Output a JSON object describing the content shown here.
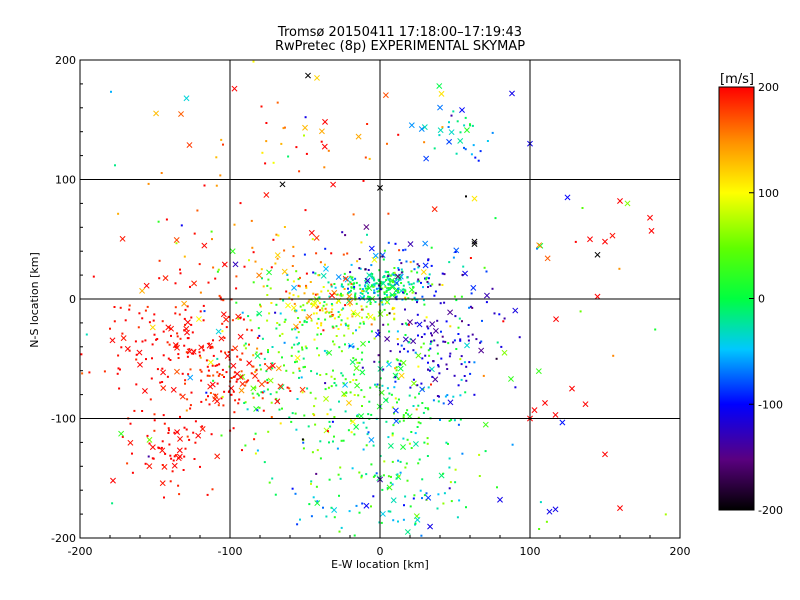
{
  "chart_data": {
    "type": "scatter",
    "title": "Tromsø 20150411 17:18:00–17:19:43",
    "subtitle": "RwPretec (8p) EXPERIMENTAL SKYMAP",
    "xlabel": "E-W location [km]",
    "ylabel": "N-S location [km]",
    "xlim": [
      -200,
      200
    ],
    "ylim": [
      -200,
      200
    ],
    "xticks": [
      -200,
      -100,
      0,
      100,
      200
    ],
    "yticks": [
      -200,
      -100,
      0,
      100,
      200
    ],
    "grid": "on",
    "colorbar": {
      "label": "[m/s]",
      "range": [
        -200,
        200
      ],
      "ticks": [
        200,
        100,
        0,
        -100,
        -200
      ],
      "colormap": "black-purple-blue-cyan-green-yellow-red"
    },
    "markers": [
      "dot",
      "x"
    ],
    "clusters": [
      {
        "cx": 0,
        "cy": 10,
        "sx": 14,
        "sy": 7,
        "n": 210,
        "v": -15,
        "dv": 35,
        "xfrac": 0.08
      },
      {
        "cx": -35,
        "cy": -8,
        "sx": 22,
        "sy": 10,
        "n": 130,
        "v": 95,
        "dv": 45,
        "xfrac": 0.12
      },
      {
        "cx": -40,
        "cy": -55,
        "sx": 35,
        "sy": 40,
        "n": 260,
        "v": 20,
        "dv": 45,
        "xfrac": 0.1
      },
      {
        "cx": 15,
        "cy": -100,
        "sx": 30,
        "sy": 50,
        "n": 220,
        "v": 0,
        "dv": 45,
        "xfrac": 0.1
      },
      {
        "cx": -130,
        "cy": -40,
        "sx": 28,
        "sy": 28,
        "n": 190,
        "v": 200,
        "dv": 10,
        "xfrac": 0.15
      },
      {
        "cx": -140,
        "cy": -125,
        "sx": 15,
        "sy": 18,
        "n": 70,
        "v": 200,
        "dv": 10,
        "xfrac": 0.2
      },
      {
        "cx": -90,
        "cy": -70,
        "sx": 15,
        "sy": 15,
        "n": 70,
        "v": 190,
        "dv": 20,
        "xfrac": 0.2
      },
      {
        "cx": 35,
        "cy": -40,
        "sx": 22,
        "sy": 25,
        "n": 120,
        "v": -125,
        "dv": 20,
        "xfrac": 0.15
      },
      {
        "cx": 50,
        "cy": 140,
        "sx": 14,
        "sy": 14,
        "n": 35,
        "v": -40,
        "dv": 40,
        "xfrac": 0.4
      },
      {
        "cx": -50,
        "cy": 110,
        "sx": 50,
        "sy": 40,
        "n": 50,
        "v": 180,
        "dv": 40,
        "xfrac": 0.25
      },
      {
        "cx": 20,
        "cy": 25,
        "sx": 25,
        "sy": 15,
        "n": 70,
        "v": -100,
        "dv": 50,
        "xfrac": 0.15
      },
      {
        "cx": -70,
        "cy": 30,
        "sx": 50,
        "sy": 20,
        "n": 60,
        "v": 170,
        "dv": 40,
        "xfrac": 0.15
      },
      {
        "cx": 0,
        "cy": -170,
        "sx": 30,
        "sy": 18,
        "n": 60,
        "v": -40,
        "dv": 40,
        "xfrac": 0.25
      },
      {
        "cx": 0,
        "cy": 0,
        "sx": 130,
        "sy": 110,
        "n": 110,
        "v": 60,
        "dv": 140,
        "xfrac": 0.2
      }
    ],
    "points": [
      {
        "x": 140,
        "y": 50,
        "v": 200,
        "m": "x"
      },
      {
        "x": 150,
        "y": 48,
        "v": 200,
        "m": "x"
      },
      {
        "x": 155,
        "y": 53,
        "v": 195,
        "m": "x"
      },
      {
        "x": 160,
        "y": 82,
        "v": 200,
        "m": "x"
      },
      {
        "x": 165,
        "y": 80,
        "v": 60,
        "m": "x"
      },
      {
        "x": 180,
        "y": 68,
        "v": 200,
        "m": "x"
      },
      {
        "x": 181,
        "y": 57,
        "v": 200,
        "m": "x"
      },
      {
        "x": 145,
        "y": 37,
        "v": -200,
        "m": "x"
      },
      {
        "x": 145,
        "y": 2,
        "v": 200,
        "m": "x"
      },
      {
        "x": 125,
        "y": 85,
        "v": -100,
        "m": "x"
      },
      {
        "x": 100,
        "y": 130,
        "v": -110,
        "m": "x"
      },
      {
        "x": 88,
        "y": 172,
        "v": -110,
        "m": "x"
      },
      {
        "x": 63,
        "y": 48,
        "v": -200,
        "m": "x"
      },
      {
        "x": 63,
        "y": 46,
        "v": -200,
        "m": "x"
      },
      {
        "x": 63,
        "y": 84,
        "v": 110,
        "m": "x"
      },
      {
        "x": -48,
        "y": 187,
        "v": -200,
        "m": "x"
      },
      {
        "x": -42,
        "y": 185,
        "v": 120,
        "m": "x"
      },
      {
        "x": -97,
        "y": 176,
        "v": 200,
        "m": "x"
      },
      {
        "x": -129,
        "y": 168,
        "v": -40,
        "m": "x"
      },
      {
        "x": 0,
        "y": 93,
        "v": -200,
        "m": "x"
      },
      {
        "x": -65,
        "y": 96,
        "v": -200,
        "m": "x"
      },
      {
        "x": 103,
        "y": -93,
        "v": 200,
        "m": "x"
      },
      {
        "x": 110,
        "y": -87,
        "v": 200,
        "m": "x"
      },
      {
        "x": 117,
        "y": -97,
        "v": 200,
        "m": "x"
      },
      {
        "x": 128,
        "y": -75,
        "v": 200,
        "m": "x"
      },
      {
        "x": 137,
        "y": -88,
        "v": 200,
        "m": "x"
      },
      {
        "x": 150,
        "y": -130,
        "v": 200,
        "m": "x"
      },
      {
        "x": 160,
        "y": -175,
        "v": 200,
        "m": "x"
      },
      {
        "x": 113,
        "y": -178,
        "v": -110,
        "m": "x"
      },
      {
        "x": 117,
        "y": -176,
        "v": -110,
        "m": "x"
      },
      {
        "x": 80,
        "y": -168,
        "v": -110,
        "m": "x"
      },
      {
        "x": 100,
        "y": -100,
        "v": 200,
        "m": "x"
      },
      {
        "x": -178,
        "y": -152,
        "v": 200,
        "m": "x"
      },
      {
        "x": -160,
        "y": -55,
        "v": 200,
        "m": "x"
      },
      {
        "x": 83,
        "y": -45,
        "v": 60,
        "m": "x"
      }
    ]
  }
}
